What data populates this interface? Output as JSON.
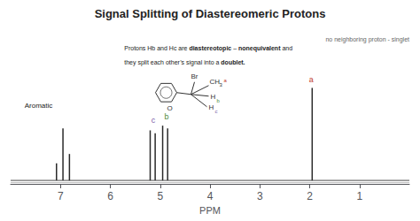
{
  "chart_data": {
    "type": "stem",
    "title": "Signal Splitting of Diastereomeric Protons",
    "xlabel": "PPM",
    "xlim": [
      8,
      0
    ],
    "xticks": [
      1,
      2,
      3,
      4,
      5,
      6,
      7
    ],
    "ylim": [
      0,
      1
    ],
    "yticks": [],
    "tick_labels": "x",
    "grid": false,
    "color": "#2a2a2a",
    "baselines": [
      0.022,
      0.008
    ],
    "series": [
      {
        "x": [
          6.82,
          6.95,
          7.08
        ],
        "values": [
          0.19,
          0.352,
          0.13
        ]
      },
      {
        "x": [
          4.85,
          4.95
        ],
        "values": [
          0.352,
          0.37
        ]
      },
      {
        "x": [
          5.1,
          5.2
        ],
        "values": [
          0.322,
          0.34
        ]
      },
      {
        "x": [
          1.95
        ],
        "values": [
          0.61
        ]
      }
    ],
    "annotations": [
      {
        "text": "a",
        "x": 1.97,
        "y": 0.635,
        "color": "#c0392b"
      },
      {
        "text": "b",
        "x": 4.87,
        "y": 0.4,
        "color": "#4e8c3a"
      },
      {
        "text": "c",
        "x": 5.14,
        "y": 0.38,
        "color": "#7b5ea7"
      },
      {
        "text": "Aromatic"
      },
      {
        "text": "no neighboring proton - singlet"
      }
    ],
    "caption": [
      [
        {
          "text": "Protons Hb and Hc are "
        },
        {
          "text": "diastereotopic",
          "bold": true
        },
        {
          "text": " – "
        },
        {
          "text": "nonequivalent",
          "bold": true
        },
        {
          "text": " and"
        }
      ],
      [
        {
          "text": "they split each other’s signal into a "
        },
        {
          "text": "doublet.",
          "bold": true
        }
      ]
    ],
    "structure": [
      {
        "text": "Br"
      },
      {
        "text": "CH",
        "sub": "3",
        "tag": "a"
      },
      {
        "text": "H",
        "tag": "b"
      },
      {
        "text": "H",
        "tag": "c"
      },
      {
        "text": "O"
      }
    ]
  }
}
